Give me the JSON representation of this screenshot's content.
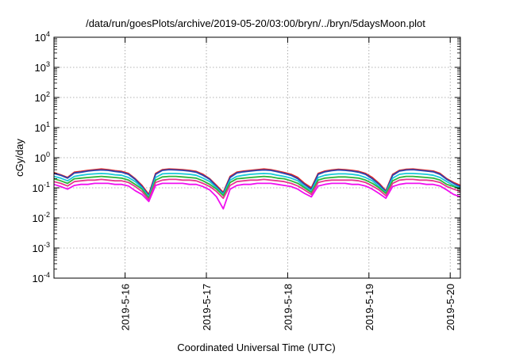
{
  "chart_data": {
    "type": "line",
    "title": "/data/run/goesPlots/archive/2019-05-20/03:00/bryn/../bryn/5daysMoon.plot",
    "xlabel": "Coordinated Universal Time (UTC)",
    "ylabel": "cGy/day",
    "yscale": "log",
    "ylim": [
      0.0001,
      10000
    ],
    "xlim": [
      "2019-05-15 03:00",
      "2019-05-20 03:00"
    ],
    "y_ticks": [
      {
        "value": 0.0001,
        "base": "10",
        "exp": "-4"
      },
      {
        "value": 0.001,
        "base": "10",
        "exp": "-3"
      },
      {
        "value": 0.01,
        "base": "10",
        "exp": "-2"
      },
      {
        "value": 0.1,
        "base": "10",
        "exp": "-1"
      },
      {
        "value": 1,
        "base": "10",
        "exp": "0"
      },
      {
        "value": 10,
        "base": "10",
        "exp": "1"
      },
      {
        "value": 100,
        "base": "10",
        "exp": "2"
      },
      {
        "value": 1000,
        "base": "10",
        "exp": "3"
      },
      {
        "value": 10000,
        "base": "10",
        "exp": "4"
      }
    ],
    "x_ticks": [
      "2019-5-16",
      "2019-5-17",
      "2019-5-18",
      "2019-5-19",
      "2019-5-20"
    ],
    "grid": true,
    "series": [
      {
        "color": "#e8251f",
        "values": [
          0.32,
          0.27,
          0.22,
          0.33,
          0.35,
          0.38,
          0.4,
          0.42,
          0.4,
          0.37,
          0.35,
          0.3,
          0.2,
          0.12,
          0.06,
          0.3,
          0.4,
          0.42,
          0.41,
          0.4,
          0.38,
          0.35,
          0.28,
          0.2,
          0.12,
          0.07,
          0.24,
          0.33,
          0.36,
          0.38,
          0.4,
          0.42,
          0.4,
          0.36,
          0.32,
          0.28,
          0.22,
          0.14,
          0.1,
          0.3,
          0.36,
          0.39,
          0.41,
          0.4,
          0.38,
          0.35,
          0.3,
          0.22,
          0.14,
          0.08,
          0.28,
          0.38,
          0.41,
          0.42,
          0.4,
          0.38,
          0.36,
          0.3,
          0.2,
          0.15,
          0.12
        ]
      },
      {
        "color": "#2b43b0",
        "values": [
          0.3,
          0.26,
          0.21,
          0.31,
          0.33,
          0.36,
          0.38,
          0.39,
          0.38,
          0.35,
          0.33,
          0.28,
          0.19,
          0.11,
          0.055,
          0.28,
          0.38,
          0.4,
          0.39,
          0.38,
          0.36,
          0.33,
          0.26,
          0.19,
          0.11,
          0.065,
          0.22,
          0.31,
          0.34,
          0.36,
          0.38,
          0.39,
          0.38,
          0.34,
          0.3,
          0.26,
          0.2,
          0.13,
          0.09,
          0.28,
          0.34,
          0.37,
          0.39,
          0.38,
          0.36,
          0.33,
          0.28,
          0.2,
          0.13,
          0.075,
          0.26,
          0.36,
          0.39,
          0.4,
          0.38,
          0.36,
          0.34,
          0.28,
          0.19,
          0.14,
          0.11
        ]
      },
      {
        "color": "#18c9d8",
        "values": [
          0.24,
          0.21,
          0.17,
          0.24,
          0.26,
          0.28,
          0.29,
          0.3,
          0.29,
          0.27,
          0.26,
          0.22,
          0.16,
          0.1,
          0.05,
          0.22,
          0.29,
          0.3,
          0.3,
          0.29,
          0.28,
          0.26,
          0.21,
          0.16,
          0.1,
          0.06,
          0.18,
          0.24,
          0.26,
          0.28,
          0.29,
          0.3,
          0.29,
          0.26,
          0.24,
          0.21,
          0.17,
          0.11,
          0.08,
          0.22,
          0.26,
          0.28,
          0.29,
          0.29,
          0.28,
          0.26,
          0.22,
          0.17,
          0.11,
          0.07,
          0.21,
          0.28,
          0.3,
          0.3,
          0.29,
          0.28,
          0.26,
          0.22,
          0.16,
          0.12,
          0.1
        ]
      },
      {
        "color": "#2fb43a",
        "values": [
          0.2,
          0.17,
          0.14,
          0.2,
          0.21,
          0.22,
          0.23,
          0.24,
          0.23,
          0.22,
          0.21,
          0.18,
          0.13,
          0.09,
          0.045,
          0.18,
          0.23,
          0.24,
          0.24,
          0.23,
          0.22,
          0.21,
          0.17,
          0.13,
          0.09,
          0.055,
          0.15,
          0.2,
          0.21,
          0.22,
          0.23,
          0.24,
          0.23,
          0.21,
          0.2,
          0.17,
          0.14,
          0.1,
          0.07,
          0.18,
          0.21,
          0.22,
          0.23,
          0.23,
          0.22,
          0.21,
          0.18,
          0.14,
          0.1,
          0.065,
          0.17,
          0.22,
          0.24,
          0.24,
          0.23,
          0.22,
          0.21,
          0.18,
          0.13,
          0.11,
          0.09
        ]
      },
      {
        "color": "#e8348f",
        "values": [
          0.16,
          0.14,
          0.115,
          0.16,
          0.17,
          0.18,
          0.18,
          0.19,
          0.18,
          0.17,
          0.17,
          0.15,
          0.11,
          0.075,
          0.04,
          0.15,
          0.18,
          0.19,
          0.19,
          0.18,
          0.18,
          0.17,
          0.14,
          0.11,
          0.075,
          0.045,
          0.12,
          0.16,
          0.17,
          0.18,
          0.18,
          0.19,
          0.18,
          0.17,
          0.16,
          0.14,
          0.115,
          0.085,
          0.06,
          0.15,
          0.17,
          0.18,
          0.18,
          0.18,
          0.18,
          0.17,
          0.15,
          0.115,
          0.085,
          0.055,
          0.14,
          0.18,
          0.19,
          0.19,
          0.18,
          0.18,
          0.17,
          0.15,
          0.11,
          0.09,
          0.075
        ]
      },
      {
        "color": "#f00ff0",
        "values": [
          0.13,
          0.11,
          0.09,
          0.12,
          0.13,
          0.13,
          0.14,
          0.14,
          0.14,
          0.13,
          0.13,
          0.115,
          0.08,
          0.06,
          0.035,
          0.12,
          0.14,
          0.14,
          0.14,
          0.14,
          0.13,
          0.13,
          0.11,
          0.085,
          0.05,
          0.02,
          0.09,
          0.12,
          0.13,
          0.13,
          0.14,
          0.14,
          0.14,
          0.13,
          0.12,
          0.11,
          0.09,
          0.065,
          0.05,
          0.115,
          0.13,
          0.14,
          0.14,
          0.14,
          0.13,
          0.13,
          0.115,
          0.09,
          0.065,
          0.045,
          0.11,
          0.13,
          0.14,
          0.14,
          0.14,
          0.13,
          0.13,
          0.115,
          0.085,
          0.06,
          0.05
        ]
      }
    ]
  }
}
